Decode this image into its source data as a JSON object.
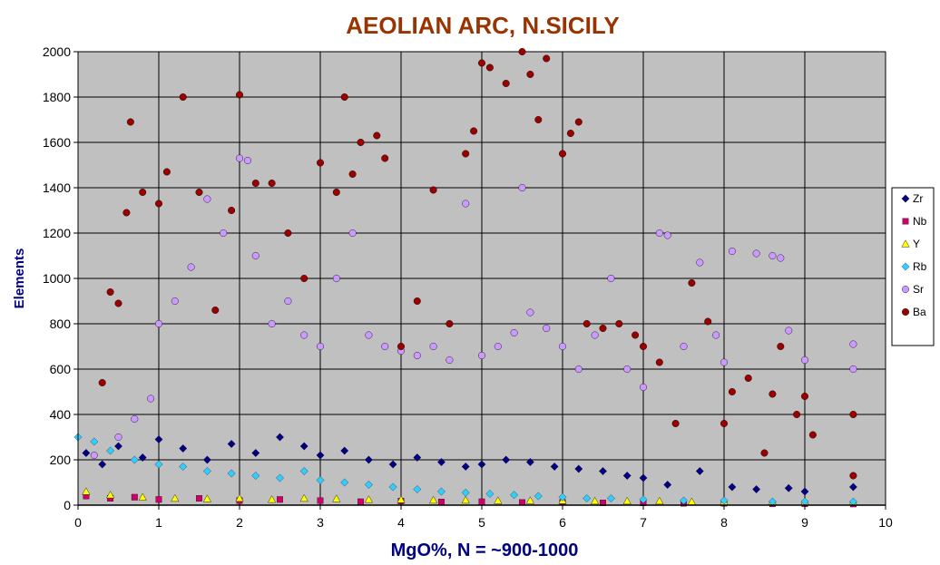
{
  "chart_data": {
    "type": "scatter",
    "title": "AEOLIAN ARC, N.SICILY",
    "xlabel": "MgO%,  N = ~900-1000",
    "ylabel": "Elements",
    "xlim": [
      0,
      10
    ],
    "ylim": [
      0,
      2000
    ],
    "x_ticks": [
      "0",
      "1",
      "2",
      "3",
      "4",
      "5",
      "6",
      "7",
      "8",
      "9",
      "10"
    ],
    "y_ticks": [
      "0",
      "200",
      "400",
      "600",
      "800",
      "1000",
      "1200",
      "1400",
      "1600",
      "1800",
      "2000"
    ],
    "grid": true,
    "plot_background": "#c0c0c0",
    "legend_position": "right",
    "series": [
      {
        "name": "Zr",
        "marker": "diamond",
        "color": "#000080",
        "points": [
          [
            0.1,
            230
          ],
          [
            0.3,
            180
          ],
          [
            0.5,
            260
          ],
          [
            0.8,
            210
          ],
          [
            1.0,
            290
          ],
          [
            1.3,
            250
          ],
          [
            1.6,
            200
          ],
          [
            1.9,
            270
          ],
          [
            2.2,
            230
          ],
          [
            2.5,
            300
          ],
          [
            2.8,
            260
          ],
          [
            3.0,
            220
          ],
          [
            3.3,
            240
          ],
          [
            3.6,
            200
          ],
          [
            3.9,
            180
          ],
          [
            4.2,
            210
          ],
          [
            4.5,
            190
          ],
          [
            4.8,
            170
          ],
          [
            5.0,
            180
          ],
          [
            5.3,
            200
          ],
          [
            5.6,
            190
          ],
          [
            5.9,
            170
          ],
          [
            6.2,
            160
          ],
          [
            6.5,
            150
          ],
          [
            6.8,
            130
          ],
          [
            7.0,
            120
          ],
          [
            7.3,
            90
          ],
          [
            7.7,
            150
          ],
          [
            8.1,
            80
          ],
          [
            8.4,
            70
          ],
          [
            8.8,
            75
          ],
          [
            9.0,
            60
          ],
          [
            9.6,
            80
          ]
        ]
      },
      {
        "name": "Nb",
        "marker": "square",
        "color": "#cc0066",
        "points": [
          [
            0.1,
            40
          ],
          [
            0.4,
            30
          ],
          [
            0.7,
            35
          ],
          [
            1.0,
            25
          ],
          [
            1.5,
            30
          ],
          [
            2.0,
            20
          ],
          [
            2.5,
            25
          ],
          [
            3.0,
            20
          ],
          [
            3.5,
            15
          ],
          [
            4.0,
            18
          ],
          [
            4.5,
            14
          ],
          [
            5.0,
            15
          ],
          [
            5.5,
            12
          ],
          [
            6.0,
            12
          ],
          [
            6.5,
            10
          ],
          [
            7.0,
            10
          ],
          [
            7.5,
            8
          ],
          [
            8.0,
            8
          ],
          [
            8.6,
            6
          ],
          [
            9.0,
            6
          ],
          [
            9.6,
            5
          ]
        ]
      },
      {
        "name": "Y",
        "marker": "triangle",
        "color": "#ffff00",
        "points": [
          [
            0.1,
            60
          ],
          [
            0.4,
            45
          ],
          [
            0.8,
            35
          ],
          [
            1.2,
            30
          ],
          [
            1.6,
            28
          ],
          [
            2.0,
            30
          ],
          [
            2.4,
            25
          ],
          [
            2.8,
            30
          ],
          [
            3.2,
            28
          ],
          [
            3.6,
            25
          ],
          [
            4.0,
            24
          ],
          [
            4.4,
            22
          ],
          [
            4.8,
            22
          ],
          [
            5.2,
            20
          ],
          [
            5.6,
            20
          ],
          [
            6.0,
            20
          ],
          [
            6.4,
            18
          ],
          [
            6.8,
            18
          ],
          [
            7.2,
            18
          ],
          [
            7.6,
            15
          ],
          [
            8.0,
            15
          ],
          [
            8.6,
            15
          ],
          [
            9.0,
            14
          ],
          [
            9.6,
            14
          ]
        ]
      },
      {
        "name": "Rb",
        "marker": "diamond",
        "color": "#33ccff",
        "points": [
          [
            0.0,
            300
          ],
          [
            0.2,
            280
          ],
          [
            0.4,
            240
          ],
          [
            0.7,
            200
          ],
          [
            1.0,
            180
          ],
          [
            1.3,
            170
          ],
          [
            1.6,
            150
          ],
          [
            1.9,
            140
          ],
          [
            2.2,
            130
          ],
          [
            2.5,
            120
          ],
          [
            2.8,
            150
          ],
          [
            3.0,
            110
          ],
          [
            3.3,
            100
          ],
          [
            3.6,
            90
          ],
          [
            3.9,
            80
          ],
          [
            4.2,
            70
          ],
          [
            4.5,
            60
          ],
          [
            4.8,
            55
          ],
          [
            5.1,
            50
          ],
          [
            5.4,
            45
          ],
          [
            5.7,
            40
          ],
          [
            6.0,
            35
          ],
          [
            6.3,
            30
          ],
          [
            6.6,
            30
          ],
          [
            7.0,
            25
          ],
          [
            7.5,
            20
          ],
          [
            8.0,
            20
          ],
          [
            8.6,
            15
          ],
          [
            9.0,
            15
          ],
          [
            9.6,
            15
          ]
        ]
      },
      {
        "name": "Sr",
        "marker": "circle",
        "color": "#cc99ff",
        "points": [
          [
            0.2,
            220
          ],
          [
            0.5,
            300
          ],
          [
            0.7,
            380
          ],
          [
            0.9,
            470
          ],
          [
            1.0,
            800
          ],
          [
            1.2,
            900
          ],
          [
            1.4,
            1050
          ],
          [
            1.6,
            1350
          ],
          [
            1.8,
            1200
          ],
          [
            2.0,
            1530
          ],
          [
            2.1,
            1520
          ],
          [
            2.2,
            1100
          ],
          [
            2.4,
            800
          ],
          [
            2.6,
            900
          ],
          [
            2.8,
            750
          ],
          [
            3.0,
            700
          ],
          [
            3.2,
            1000
          ],
          [
            3.4,
            1200
          ],
          [
            3.6,
            750
          ],
          [
            3.8,
            700
          ],
          [
            4.0,
            680
          ],
          [
            4.2,
            660
          ],
          [
            4.4,
            700
          ],
          [
            4.6,
            640
          ],
          [
            4.8,
            1330
          ],
          [
            5.0,
            660
          ],
          [
            5.2,
            700
          ],
          [
            5.4,
            760
          ],
          [
            5.5,
            1400
          ],
          [
            5.6,
            850
          ],
          [
            5.8,
            780
          ],
          [
            6.0,
            700
          ],
          [
            6.2,
            600
          ],
          [
            6.4,
            750
          ],
          [
            6.6,
            1000
          ],
          [
            6.8,
            600
          ],
          [
            7.0,
            520
          ],
          [
            7.2,
            1200
          ],
          [
            7.3,
            1190
          ],
          [
            7.5,
            700
          ],
          [
            7.7,
            1070
          ],
          [
            7.9,
            750
          ],
          [
            8.0,
            630
          ],
          [
            8.1,
            1120
          ],
          [
            8.4,
            1110
          ],
          [
            8.6,
            1100
          ],
          [
            8.7,
            1090
          ],
          [
            8.8,
            770
          ],
          [
            9.0,
            640
          ],
          [
            9.6,
            710
          ],
          [
            9.6,
            600
          ]
        ]
      },
      {
        "name": "Ba",
        "marker": "circle",
        "color": "#990000",
        "points": [
          [
            0.3,
            540
          ],
          [
            0.4,
            940
          ],
          [
            0.5,
            890
          ],
          [
            0.6,
            1290
          ],
          [
            0.65,
            1690
          ],
          [
            0.8,
            1380
          ],
          [
            1.0,
            1330
          ],
          [
            1.1,
            1470
          ],
          [
            1.3,
            1800
          ],
          [
            1.5,
            1380
          ],
          [
            1.7,
            860
          ],
          [
            1.9,
            1300
          ],
          [
            2.0,
            1810
          ],
          [
            2.2,
            1420
          ],
          [
            2.4,
            1420
          ],
          [
            2.6,
            1200
          ],
          [
            2.8,
            1000
          ],
          [
            3.0,
            1510
          ],
          [
            3.2,
            1380
          ],
          [
            3.3,
            1800
          ],
          [
            3.4,
            1460
          ],
          [
            3.5,
            1600
          ],
          [
            3.7,
            1630
          ],
          [
            3.8,
            1530
          ],
          [
            4.0,
            700
          ],
          [
            4.2,
            900
          ],
          [
            4.4,
            1390
          ],
          [
            4.6,
            800
          ],
          [
            4.8,
            1550
          ],
          [
            4.9,
            1650
          ],
          [
            5.0,
            1950
          ],
          [
            5.1,
            1930
          ],
          [
            5.3,
            1860
          ],
          [
            5.5,
            2000
          ],
          [
            5.6,
            1900
          ],
          [
            5.7,
            1700
          ],
          [
            5.8,
            1970
          ],
          [
            6.0,
            1550
          ],
          [
            6.1,
            1640
          ],
          [
            6.2,
            1690
          ],
          [
            6.3,
            800
          ],
          [
            6.5,
            780
          ],
          [
            6.7,
            800
          ],
          [
            6.9,
            750
          ],
          [
            7.0,
            700
          ],
          [
            7.2,
            630
          ],
          [
            7.4,
            360
          ],
          [
            7.6,
            980
          ],
          [
            7.8,
            810
          ],
          [
            8.0,
            360
          ],
          [
            8.1,
            500
          ],
          [
            8.3,
            560
          ],
          [
            8.5,
            230
          ],
          [
            8.6,
            490
          ],
          [
            8.7,
            700
          ],
          [
            8.9,
            400
          ],
          [
            9.0,
            480
          ],
          [
            9.1,
            310
          ],
          [
            9.6,
            400
          ],
          [
            9.6,
            130
          ]
        ]
      }
    ]
  }
}
